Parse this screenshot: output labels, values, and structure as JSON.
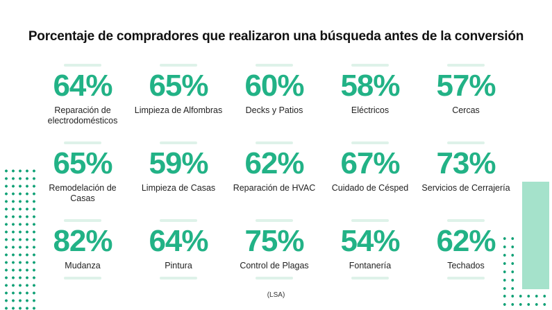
{
  "title": "Porcentaje de compradores que realizaron una búsqueda antes de la conversión",
  "source_note": "(LSA)",
  "colors": {
    "accent_green": "#22b286",
    "dot_green": "#12a277",
    "mint_bar": "#a5e2cb",
    "dash_mint": "#def2e9",
    "title_text": "#111111",
    "label_text": "#222222"
  },
  "cells": [
    {
      "pct": "64%",
      "label": "Reparación de electrodomésticos"
    },
    {
      "pct": "65%",
      "label": "Limpieza de Alfombras"
    },
    {
      "pct": "60%",
      "label": "Decks y Patios"
    },
    {
      "pct": "58%",
      "label": "Eléctricos"
    },
    {
      "pct": "57%",
      "label": "Cercas"
    },
    {
      "pct": "65%",
      "label": "Remodelación de Casas"
    },
    {
      "pct": "59%",
      "label": "Limpieza de Casas"
    },
    {
      "pct": "62%",
      "label": "Reparación de HVAC"
    },
    {
      "pct": "67%",
      "label": "Cuidado de Césped"
    },
    {
      "pct": "73%",
      "label": "Servicios de Cerrajería"
    },
    {
      "pct": "82%",
      "label": "Mudanza"
    },
    {
      "pct": "64%",
      "label": "Pintura"
    },
    {
      "pct": "75%",
      "label": "Control de Plagas"
    },
    {
      "pct": "54%",
      "label": "Fontanería"
    },
    {
      "pct": "62%",
      "label": "Techados"
    }
  ],
  "chart_data": {
    "type": "table",
    "title": "Porcentaje de compradores que realizaron una búsqueda antes de la conversión",
    "unit": "%",
    "layout": "5x3-grid",
    "legend_position": "none",
    "grid": false,
    "categories": [
      "Reparación de electrodomésticos",
      "Limpieza de Alfombras",
      "Decks y Patios",
      "Eléctricos",
      "Cercas",
      "Remodelación de Casas",
      "Limpieza de Casas",
      "Reparación de HVAC",
      "Cuidado de Césped",
      "Servicios de Cerrajería",
      "Mudanza",
      "Pintura",
      "Control de Plagas",
      "Fontanería",
      "Techados"
    ],
    "values": [
      64,
      65,
      60,
      58,
      57,
      65,
      59,
      62,
      67,
      73,
      82,
      64,
      75,
      54,
      62
    ],
    "source": "(LSA)"
  }
}
